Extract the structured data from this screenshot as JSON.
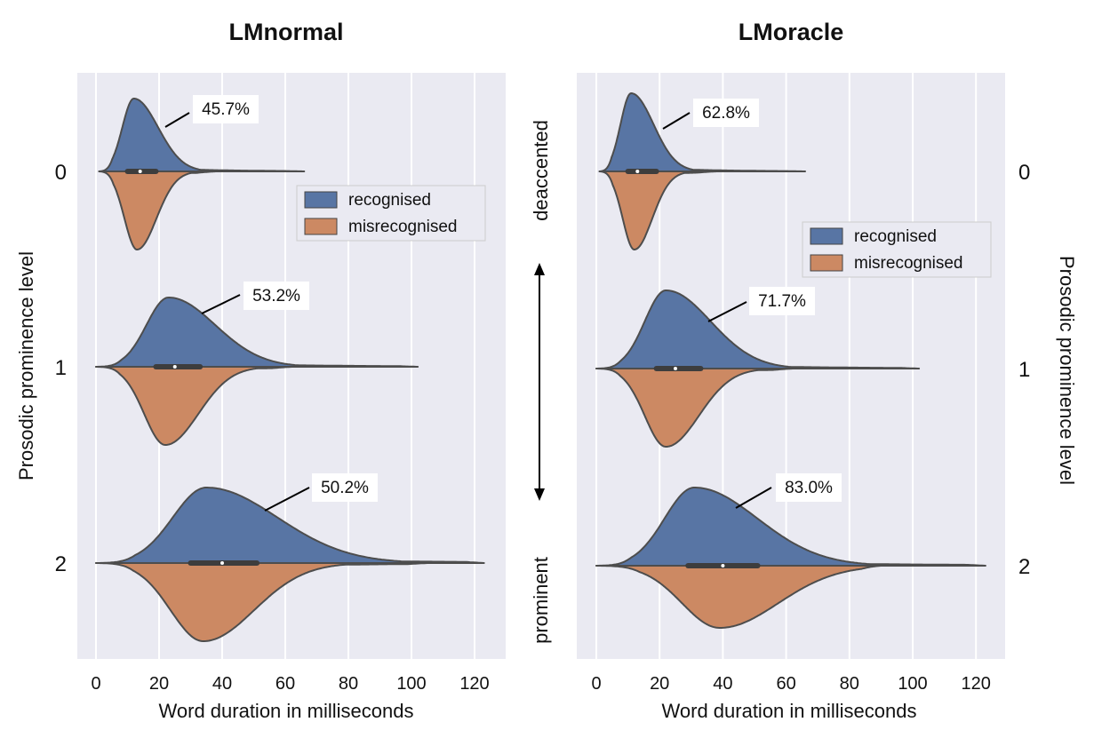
{
  "colors": {
    "recognised": "#5875a4",
    "misrecognised": "#cc8963",
    "panel_bg": "#eaeaf2",
    "grid": "#ffffff",
    "outline": "#4d4d4d"
  },
  "labels": {
    "left_ylabel": "Prosodic prominence level",
    "right_ylabel": "Prosodic prominence level",
    "side_top": "deaccented",
    "side_bottom": "prominent"
  },
  "chart_data": [
    {
      "type": "violin",
      "title": "LMnormal",
      "xlabel": "Word duration in milliseconds",
      "ylabel": "Prosodic prominence level",
      "xlim": [
        -3,
        128
      ],
      "xticks": [
        "0",
        "20",
        "40",
        "60",
        "80",
        "100",
        "120"
      ],
      "categories": [
        "0",
        "1",
        "2"
      ],
      "grid": true,
      "legend": {
        "position": "upper-right",
        "entries": [
          "recognised",
          "misrecognised"
        ]
      },
      "series": [
        {
          "name": "recognised",
          "levels": [
            {
              "level": "0",
              "peak": 12,
              "min": 1,
              "max": 66,
              "median": 14,
              "q1": 10,
              "q3": 19,
              "annotation": "45.7%"
            },
            {
              "level": "1",
              "peak": 23,
              "min": 0,
              "max": 102,
              "median": 25,
              "q1": 19,
              "q3": 33,
              "annotation": "53.2%"
            },
            {
              "level": "2",
              "peak": 35,
              "min": 0,
              "max": 123,
              "median": 40,
              "q1": 30,
              "q3": 51,
              "annotation": "50.2%"
            }
          ]
        },
        {
          "name": "misrecognised",
          "levels": [
            {
              "level": "0",
              "peak": 13,
              "min": 1,
              "max": 38
            },
            {
              "level": "1",
              "peak": 22,
              "min": 0,
              "max": 62
            },
            {
              "level": "2",
              "peak": 34,
              "min": 0,
              "max": 105
            }
          ]
        }
      ]
    },
    {
      "type": "violin",
      "title": "LMoracle",
      "xlabel": "Word duration in milliseconds",
      "ylabel": "Prosodic prominence level",
      "xlim": [
        -3,
        128
      ],
      "xticks": [
        "0",
        "20",
        "40",
        "60",
        "80",
        "100",
        "120"
      ],
      "categories": [
        "0",
        "1",
        "2"
      ],
      "grid": true,
      "legend": {
        "position": "center-right",
        "entries": [
          "recognised",
          "misrecognised"
        ]
      },
      "series": [
        {
          "name": "recognised",
          "levels": [
            {
              "level": "0",
              "peak": 11,
              "min": 1,
              "max": 66,
              "median": 13,
              "q1": 10,
              "q3": 19,
              "annotation": "62.8%"
            },
            {
              "level": "1",
              "peak": 22,
              "min": 0,
              "max": 102,
              "median": 25,
              "q1": 19,
              "q3": 33,
              "annotation": "71.7%"
            },
            {
              "level": "2",
              "peak": 31,
              "min": 0,
              "max": 123,
              "median": 40,
              "q1": 29,
              "q3": 51,
              "annotation": "83.0%"
            }
          ]
        },
        {
          "name": "misrecognised",
          "levels": [
            {
              "level": "0",
              "peak": 12,
              "min": 1,
              "max": 38
            },
            {
              "level": "1",
              "peak": 22,
              "min": 0,
              "max": 62
            },
            {
              "level": "2",
              "peak": 39,
              "min": 0,
              "max": 90
            }
          ]
        }
      ]
    }
  ]
}
